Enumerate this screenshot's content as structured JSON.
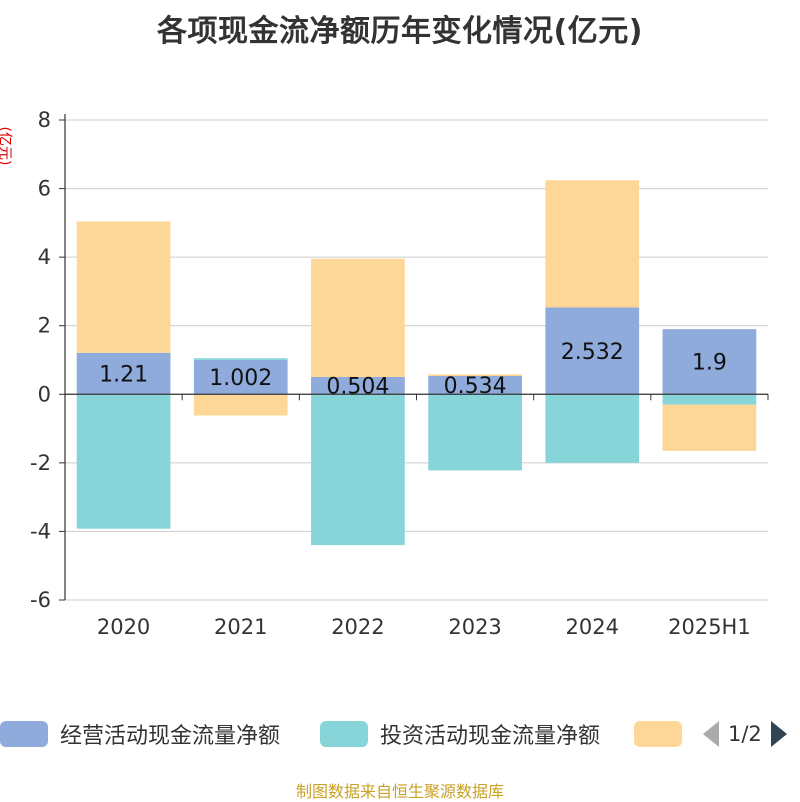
{
  "title": "各项现金流净额历年变化情况(亿元)",
  "unit_label": "(亿元)",
  "source": "制图数据来自恒生聚源数据库",
  "legend": {
    "items": [
      {
        "label": "经营活动现金流量净额",
        "color": "#8eabdb"
      },
      {
        "label": "投资活动现金流量净额",
        "color": "#87d5d8"
      },
      {
        "label": "",
        "color": "#fdd797"
      }
    ],
    "page": "1/2",
    "prev_icon": "triangle-left-icon",
    "next_icon": "triangle-right-icon"
  },
  "chart_data": {
    "type": "bar",
    "stacked": true,
    "categories": [
      "2020",
      "2021",
      "2022",
      "2023",
      "2024",
      "2025H1"
    ],
    "ylim": [
      -6,
      8
    ],
    "yticks": [
      -6,
      -4,
      -2,
      0,
      2,
      4,
      6,
      8
    ],
    "grid": true,
    "legend_position": "bottom",
    "series": [
      {
        "name": "经营活动现金流量净额",
        "color": "#8eabdb",
        "values": [
          1.21,
          1.002,
          0.504,
          0.534,
          2.532,
          1.9
        ],
        "labels": [
          "1.21",
          "1.002",
          "0.504",
          "0.534",
          "2.532",
          "1.9"
        ]
      },
      {
        "name": "投资活动现金流量净额",
        "color": "#87d5d8",
        "values": [
          -3.92,
          0.05,
          -4.4,
          -2.22,
          -2.0,
          -0.3
        ]
      },
      {
        "name": "",
        "color": "#fdd797",
        "values": [
          3.83,
          -0.62,
          3.45,
          0.05,
          3.71,
          -1.35
        ]
      }
    ]
  }
}
